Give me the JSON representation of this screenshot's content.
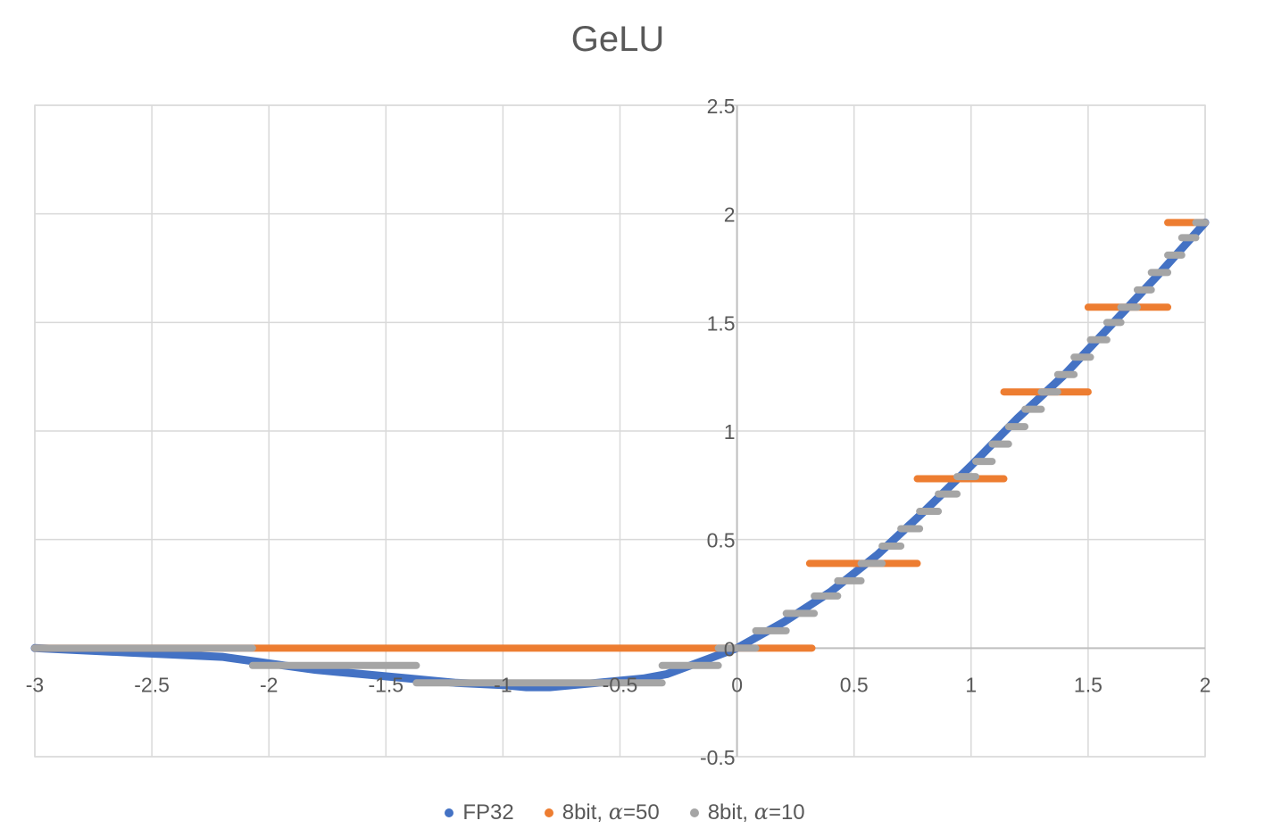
{
  "chart_data": {
    "type": "line",
    "title": "GeLU",
    "xlabel": "",
    "ylabel": "",
    "xlim": [
      -3,
      2
    ],
    "ylim": [
      -0.5,
      2.5
    ],
    "x_ticks": [
      "-3",
      "-2.5",
      "-2",
      "-1.5",
      "-1",
      "-0.5",
      "0",
      "0.5",
      "1",
      "1.5",
      "2"
    ],
    "y_ticks": [
      "2.5",
      "2",
      "1.5",
      "1",
      "0.5",
      "0",
      "-0.5"
    ],
    "grid": true,
    "legend_position": "bottom",
    "series": [
      {
        "name": "FP32",
        "color": "#4472C4",
        "style": "curve",
        "x": [
          -3.0,
          -2.8,
          -2.6,
          -2.4,
          -2.2,
          -2.0,
          -1.8,
          -1.6,
          -1.4,
          -1.2,
          -1.0,
          -0.9,
          -0.8,
          -0.7,
          -0.6,
          -0.5,
          -0.4,
          -0.3,
          -0.2,
          -0.1,
          0.0,
          0.2,
          0.4,
          0.6,
          0.8,
          1.0,
          1.2,
          1.4,
          1.6,
          1.8,
          2.0
        ],
        "y": [
          0.0,
          -0.01,
          -0.02,
          -0.03,
          -0.04,
          -0.07,
          -0.1,
          -0.12,
          -0.14,
          -0.16,
          -0.17,
          -0.18,
          -0.18,
          -0.17,
          -0.16,
          -0.15,
          -0.14,
          -0.12,
          -0.08,
          -0.04,
          0.0,
          0.12,
          0.26,
          0.43,
          0.63,
          0.84,
          1.06,
          1.26,
          1.49,
          1.72,
          1.96
        ]
      },
      {
        "name": "8bit, α=50",
        "label_text": "8bit, ",
        "label_alpha": "α",
        "label_value": "=50",
        "color": "#ED7D31",
        "style": "steps",
        "segments": [
          {
            "x1": -3.0,
            "x2": 0.32,
            "y": 0.0
          },
          {
            "x1": 0.31,
            "x2": 0.77,
            "y": 0.39
          },
          {
            "x1": 0.77,
            "x2": 1.14,
            "y": 0.78
          },
          {
            "x1": 1.14,
            "x2": 1.5,
            "y": 1.18
          },
          {
            "x1": 1.5,
            "x2": 1.84,
            "y": 1.57
          },
          {
            "x1": 1.84,
            "x2": 2.0,
            "y": 1.96
          }
        ]
      },
      {
        "name": "8bit, α=10",
        "label_text": "8bit, ",
        "label_alpha": "α",
        "label_value": "=10",
        "color": "#A5A5A5",
        "style": "steps",
        "segments": [
          {
            "x1": -3.0,
            "x2": -2.07,
            "y": 0.0
          },
          {
            "x1": -2.07,
            "x2": -1.37,
            "y": -0.08
          },
          {
            "x1": -1.37,
            "x2": -0.32,
            "y": -0.16
          },
          {
            "x1": -0.32,
            "x2": -0.08,
            "y": -0.08
          },
          {
            "x1": -0.08,
            "x2": 0.08,
            "y": 0.0
          },
          {
            "x1": 0.08,
            "x2": 0.21,
            "y": 0.08
          },
          {
            "x1": 0.21,
            "x2": 0.33,
            "y": 0.16
          },
          {
            "x1": 0.33,
            "x2": 0.43,
            "y": 0.24
          },
          {
            "x1": 0.43,
            "x2": 0.53,
            "y": 0.31
          },
          {
            "x1": 0.53,
            "x2": 0.62,
            "y": 0.39
          },
          {
            "x1": 0.62,
            "x2": 0.7,
            "y": 0.47
          },
          {
            "x1": 0.7,
            "x2": 0.78,
            "y": 0.55
          },
          {
            "x1": 0.78,
            "x2": 0.86,
            "y": 0.63
          },
          {
            "x1": 0.86,
            "x2": 0.94,
            "y": 0.71
          },
          {
            "x1": 0.94,
            "x2": 1.02,
            "y": 0.79
          },
          {
            "x1": 1.02,
            "x2": 1.09,
            "y": 0.86
          },
          {
            "x1": 1.09,
            "x2": 1.16,
            "y": 0.94
          },
          {
            "x1": 1.16,
            "x2": 1.23,
            "y": 1.02
          },
          {
            "x1": 1.23,
            "x2": 1.3,
            "y": 1.1
          },
          {
            "x1": 1.3,
            "x2": 1.37,
            "y": 1.18
          },
          {
            "x1": 1.37,
            "x2": 1.44,
            "y": 1.26
          },
          {
            "x1": 1.44,
            "x2": 1.51,
            "y": 1.34
          },
          {
            "x1": 1.51,
            "x2": 1.58,
            "y": 1.42
          },
          {
            "x1": 1.58,
            "x2": 1.64,
            "y": 1.5
          },
          {
            "x1": 1.64,
            "x2": 1.71,
            "y": 1.57
          },
          {
            "x1": 1.71,
            "x2": 1.77,
            "y": 1.65
          },
          {
            "x1": 1.77,
            "x2": 1.84,
            "y": 1.73
          },
          {
            "x1": 1.84,
            "x2": 1.9,
            "y": 1.81
          },
          {
            "x1": 1.9,
            "x2": 1.96,
            "y": 1.89
          },
          {
            "x1": 1.96,
            "x2": 2.0,
            "y": 1.96
          }
        ]
      }
    ]
  }
}
